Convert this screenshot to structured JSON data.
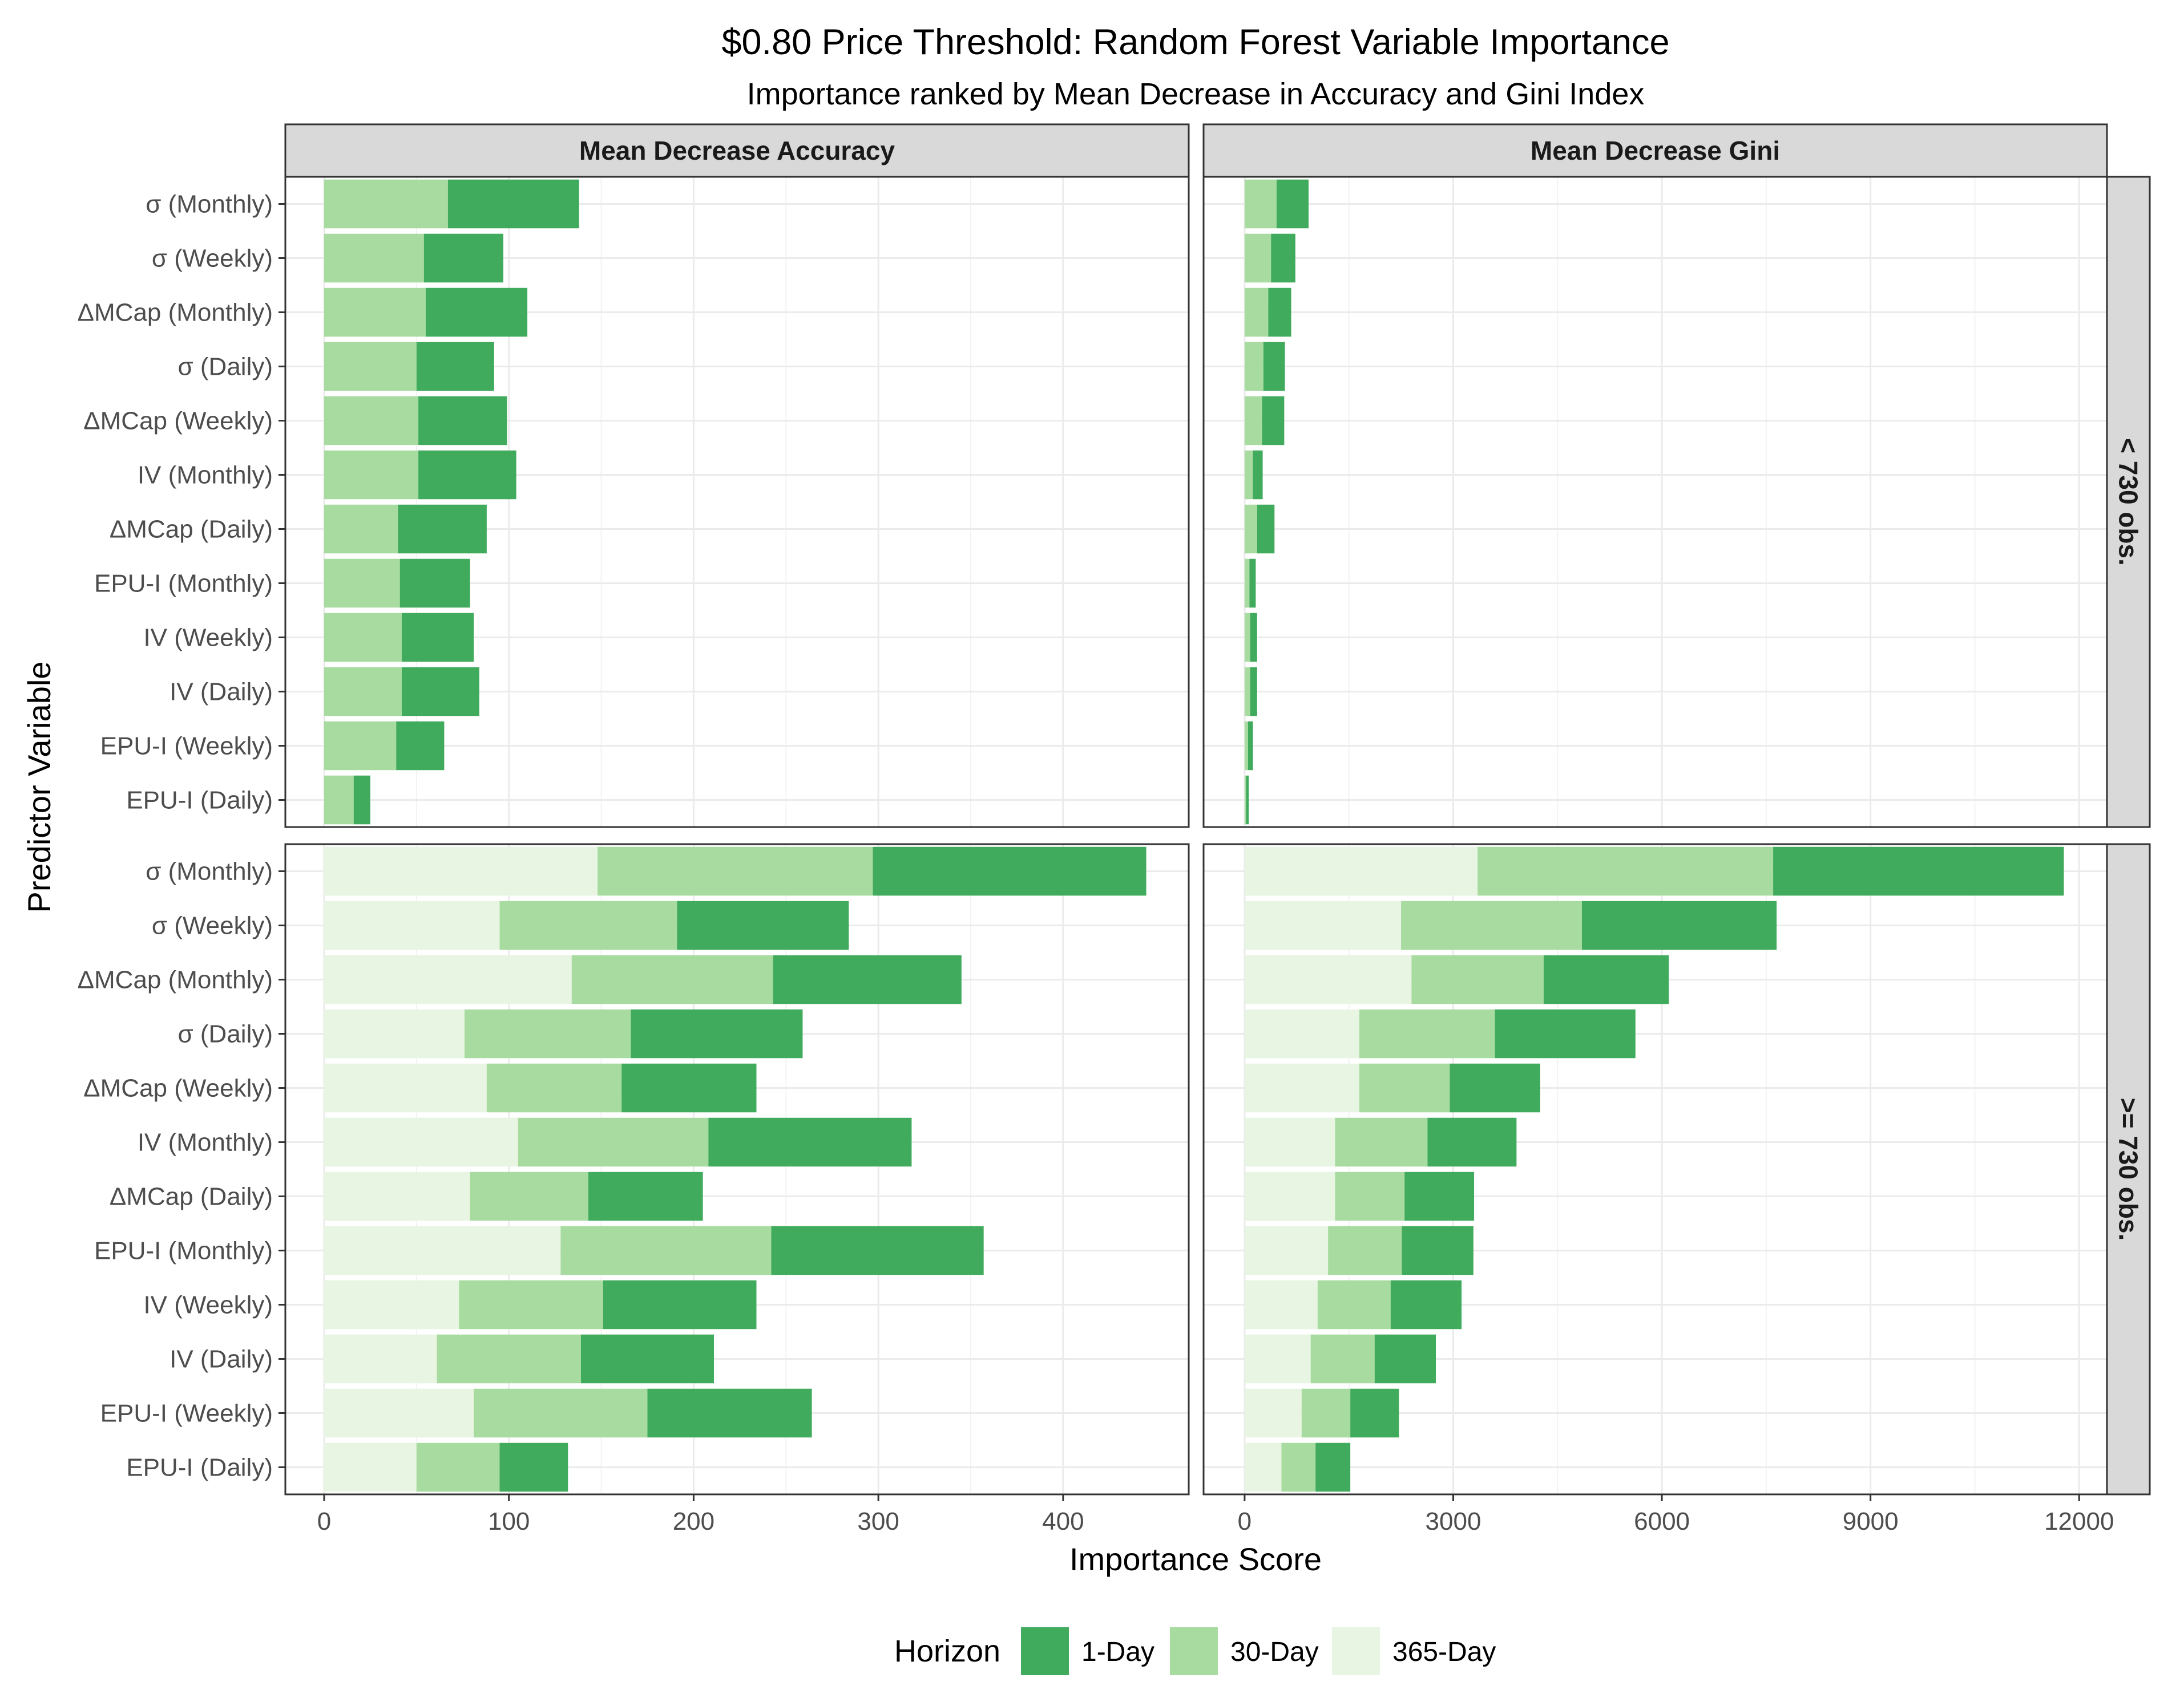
{
  "chart_data": {
    "type": "bar",
    "stacked": true,
    "orientation": "horizontal",
    "title": "$0.80 Price Threshold: Random Forest Variable Importance",
    "subtitle": "Importance ranked by Mean Decrease in Accuracy and Gini Index",
    "xlabel": "Importance Score",
    "ylabel": "Predictor Variable",
    "categories": [
      "σ (Monthly)",
      "σ (Weekly)",
      "ΔMCap (Monthly)",
      "σ (Daily)",
      "ΔMCap (Weekly)",
      "IV (Monthly)",
      "ΔMCap (Daily)",
      "EPU-I (Monthly)",
      "IV (Weekly)",
      "IV (Daily)",
      "EPU-I (Weekly)",
      "EPU-I (Daily)"
    ],
    "columns": [
      {
        "label": "Mean Decrease Accuracy",
        "xlim": [
          -21,
          468
        ],
        "ticks": [
          0,
          100,
          200,
          300,
          400
        ]
      },
      {
        "label": "Mean Decrease Gini",
        "xlim": [
          -590,
          12400
        ],
        "ticks": [
          0,
          3000,
          6000,
          9000,
          12000
        ]
      }
    ],
    "rows": [
      {
        "label": "< 730 obs."
      },
      {
        "label": ">= 730 obs."
      }
    ],
    "legend": {
      "title": "Horizon",
      "position": "bottom",
      "items": [
        {
          "name": "1-Day",
          "color": "#41ab5d"
        },
        {
          "name": "30-Day",
          "color": "#a8dba0"
        },
        {
          "name": "365-Day",
          "color": "#e8f5e2"
        }
      ]
    },
    "series_order": [
      "365-Day",
      "30-Day",
      "1-Day"
    ],
    "series_colors": {
      "1-Day": "#41ab5d",
      "30-Day": "#a8dba0",
      "365-Day": "#e8f5e2"
    },
    "panels": [
      {
        "row": 0,
        "col": 0,
        "series": {
          "365-Day": [
            0,
            0,
            0,
            0,
            0,
            0,
            0,
            0,
            0,
            0,
            0,
            0
          ],
          "30-Day": [
            67,
            54,
            55,
            50,
            51,
            51,
            40,
            41,
            42,
            42,
            39,
            16
          ],
          "1-Day": [
            71,
            43,
            55,
            42,
            48,
            53,
            48,
            38,
            39,
            42,
            26,
            9
          ]
        }
      },
      {
        "row": 0,
        "col": 1,
        "series": {
          "365-Day": [
            0,
            0,
            0,
            0,
            0,
            0,
            0,
            0,
            0,
            0,
            0,
            0
          ],
          "30-Day": [
            460,
            380,
            340,
            270,
            250,
            120,
            180,
            70,
            80,
            80,
            50,
            20
          ],
          "1-Day": [
            460,
            350,
            330,
            310,
            320,
            140,
            250,
            90,
            100,
            100,
            70,
            40
          ]
        }
      },
      {
        "row": 1,
        "col": 0,
        "series": {
          "365-Day": [
            148,
            95,
            134,
            76,
            88,
            105,
            79,
            128,
            73,
            61,
            81,
            50
          ],
          "30-Day": [
            149,
            96,
            109,
            90,
            73,
            103,
            64,
            114,
            78,
            78,
            94,
            45
          ],
          "1-Day": [
            148,
            93,
            102,
            93,
            73,
            110,
            62,
            115,
            83,
            72,
            89,
            37
          ]
        }
      },
      {
        "row": 1,
        "col": 1,
        "series": {
          "365-Day": [
            3350,
            2250,
            2400,
            1650,
            1650,
            1300,
            1300,
            1200,
            1050,
            950,
            820,
            530
          ],
          "30-Day": [
            4250,
            2600,
            1900,
            1950,
            1300,
            1330,
            1000,
            1060,
            1050,
            920,
            700,
            490
          ],
          "1-Day": [
            4180,
            2800,
            1800,
            2020,
            1300,
            1280,
            1000,
            1030,
            1020,
            880,
            700,
            500
          ]
        }
      }
    ]
  }
}
